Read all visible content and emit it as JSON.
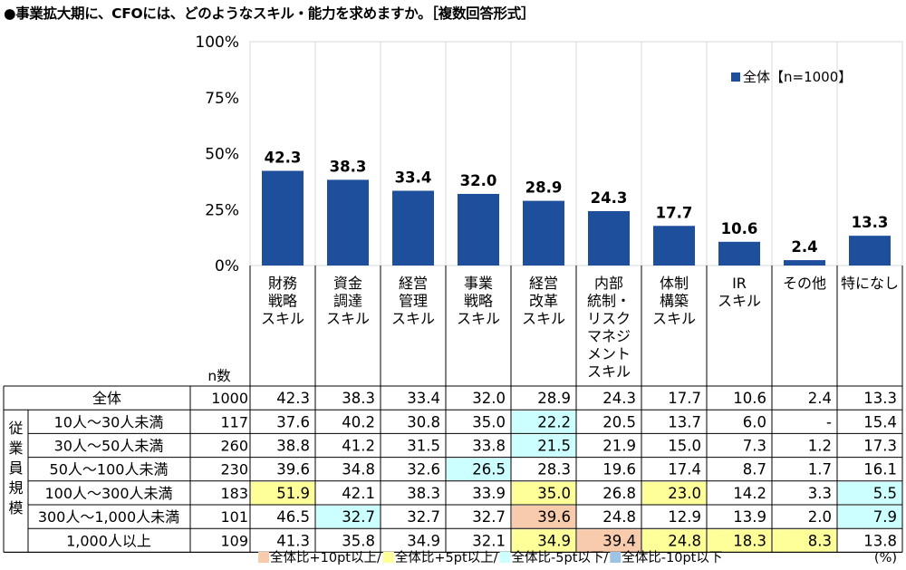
{
  "title": "●事業拡大期に、CFOには、どのようなスキル・能力を求めますか。［複数回答形式］",
  "chart_data": {
    "type": "bar",
    "ylim": [
      0,
      100
    ],
    "yticks": [
      "0%",
      "25%",
      "50%",
      "75%",
      "100%"
    ],
    "legend": "全体【n=1000】",
    "legend_position": "top-right",
    "bar_color": "#1E4F9C",
    "grid": true,
    "categories": [
      [
        "財務",
        "戦略",
        "スキル"
      ],
      [
        "資金",
        "調達",
        "スキル"
      ],
      [
        "経営",
        "管理",
        "スキル"
      ],
      [
        "事業",
        "戦略",
        "スキル"
      ],
      [
        "経営",
        "改革",
        "スキル"
      ],
      [
        "内部",
        "統制・",
        "リスク",
        "マネジ",
        "メント",
        "スキル"
      ],
      [
        "体制",
        "構築",
        "スキル"
      ],
      [
        "IR",
        "スキル"
      ],
      [
        "その他"
      ],
      [
        "特になし"
      ]
    ],
    "values": [
      42.3,
      38.3,
      33.4,
      32.0,
      28.9,
      24.3,
      17.7,
      10.6,
      2.4,
      13.3
    ],
    "value_labels": [
      "42.3",
      "38.3",
      "33.4",
      "32.0",
      "28.9",
      "24.3",
      "17.7",
      "10.6",
      "2.4",
      "13.3"
    ]
  },
  "table": {
    "n_header": "n数",
    "group_label": [
      "従",
      "業",
      "員",
      "規",
      "模"
    ],
    "rows": [
      {
        "label": "全体",
        "n": "1000",
        "values": [
          "42.3",
          "38.3",
          "33.4",
          "32.0",
          "28.9",
          "24.3",
          "17.7",
          "10.6",
          "2.4",
          "13.3"
        ],
        "hl": [
          "",
          "",
          "",
          "",
          "",
          "",
          "",
          "",
          "",
          ""
        ]
      },
      {
        "label": "10人～30人未満",
        "n": "117",
        "values": [
          "37.6",
          "40.2",
          "30.8",
          "35.0",
          "22.2",
          "20.5",
          "13.7",
          "6.0",
          "-",
          "15.4"
        ],
        "hl": [
          "",
          "",
          "",
          "",
          "c",
          "",
          "",
          "",
          "",
          ""
        ]
      },
      {
        "label": "30人～50人未満",
        "n": "260",
        "values": [
          "38.8",
          "41.2",
          "31.5",
          "33.8",
          "21.5",
          "21.9",
          "15.0",
          "7.3",
          "1.2",
          "17.3"
        ],
        "hl": [
          "",
          "",
          "",
          "",
          "c",
          "",
          "",
          "",
          "",
          ""
        ]
      },
      {
        "label": "50人～100人未満",
        "n": "230",
        "values": [
          "39.6",
          "34.8",
          "32.6",
          "26.5",
          "28.3",
          "19.6",
          "17.4",
          "8.7",
          "1.7",
          "16.1"
        ],
        "hl": [
          "",
          "",
          "",
          "c",
          "",
          "",
          "",
          "",
          "",
          ""
        ]
      },
      {
        "label": "100人～300人未満",
        "n": "183",
        "values": [
          "51.9",
          "42.1",
          "38.3",
          "33.9",
          "35.0",
          "26.8",
          "23.0",
          "14.2",
          "3.3",
          "5.5"
        ],
        "hl": [
          "y",
          "",
          "",
          "",
          "y",
          "",
          "y",
          "",
          "",
          "c"
        ]
      },
      {
        "label": "300人～1,000人未満",
        "n": "101",
        "values": [
          "46.5",
          "32.7",
          "32.7",
          "32.7",
          "39.6",
          "24.8",
          "12.9",
          "13.9",
          "2.0",
          "7.9"
        ],
        "hl": [
          "",
          "c",
          "",
          "",
          "o",
          "",
          "",
          "",
          "",
          "c"
        ]
      },
      {
        "label": "1,000人以上",
        "n": "109",
        "values": [
          "41.3",
          "35.8",
          "34.9",
          "32.1",
          "34.9",
          "39.4",
          "24.8",
          "18.3",
          "8.3",
          "13.8"
        ],
        "hl": [
          "",
          "",
          "",
          "",
          "y",
          "o",
          "y",
          "y",
          "y",
          ""
        ]
      }
    ]
  },
  "legend_bottom": {
    "items": [
      {
        "label": "全体比+10pt以上/",
        "color": "#F8CBAD"
      },
      {
        "label": "全体比+5pt以上/",
        "color": "#FFFF99"
      },
      {
        "label": "全体比-5pt以下/",
        "color": "#CCFFFF"
      },
      {
        "label": "全体比-10pt以下",
        "color": "#9DC3E6"
      }
    ],
    "unit": "(%)"
  },
  "colors": {
    "bar": "#1E4F9C",
    "hl_orange": "#F8CBAD",
    "hl_yellow": "#FFFF99",
    "hl_cyan": "#CCFFFF",
    "hl_blue": "#9DC3E6",
    "grid": "#D9D9D9"
  }
}
